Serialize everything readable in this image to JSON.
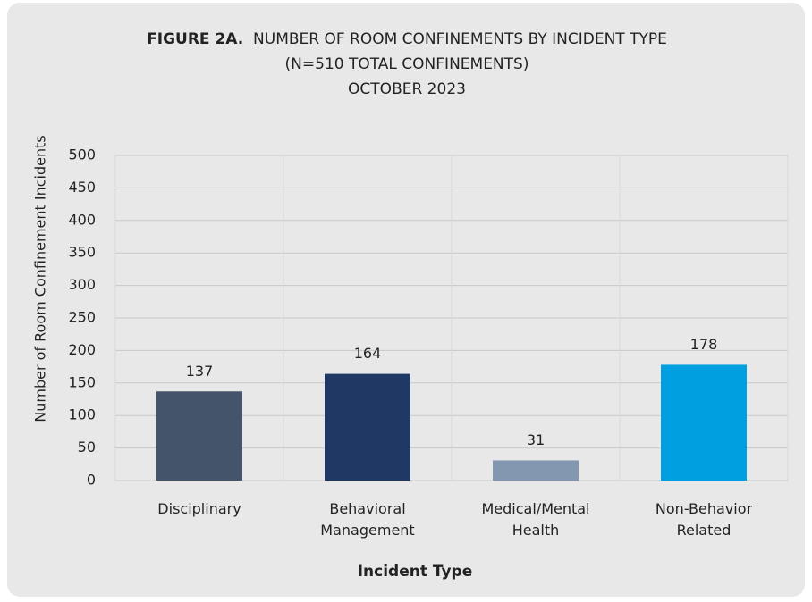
{
  "chart_data": {
    "type": "bar",
    "title_prefix": "FIGURE 2A.",
    "title": "NUMBER OF ROOM CONFINEMENTS BY INCIDENT TYPE",
    "subtitle": [
      "(N=510 TOTAL CONFINEMENTS)",
      "OCTOBER 2023"
    ],
    "x_label": "Incident Type",
    "y_label": "Number of Room Confinement Incidents",
    "categories": [
      "Disciplinary",
      "Behavioral Management",
      "Medical/Mental Health",
      "Non-Behavior Related"
    ],
    "values": [
      137,
      164,
      31,
      178
    ],
    "colors": [
      "#44546a",
      "#203864",
      "#8497b0",
      "#009fe0"
    ],
    "ylim": [
      0,
      500
    ],
    "yticks": [
      0,
      50,
      100,
      150,
      200,
      250,
      300,
      350,
      400,
      450,
      500
    ],
    "grid": true
  }
}
